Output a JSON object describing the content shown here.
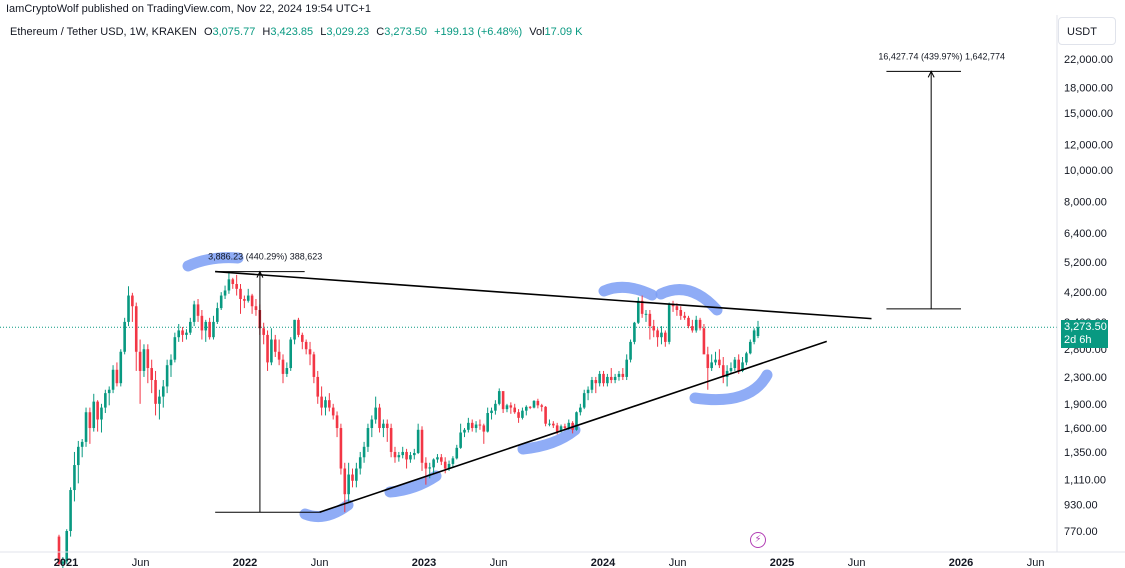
{
  "header": {
    "published": "IamCryptoWolf published on TradingView.com, Nov 22, 2024 19:54 UTC+1"
  },
  "legend": {
    "symbol": "Ethereum / Tether USD, 1W, KRAKEN",
    "o_key": "O",
    "o_val": "3,075.77",
    "h_key": "H",
    "h_val": "3,423.85",
    "l_key": "L",
    "l_val": "3,029.23",
    "c_key": "C",
    "c_val": "3,273.50",
    "change": "+199.13 (+6.48%)",
    "vol_key": "Vol",
    "vol_val": "17.09 K"
  },
  "axis": {
    "currency": "USDT",
    "y_ticks": [
      "22,000.00",
      "18,000.00",
      "15,000.00",
      "12,000.00",
      "10,000.00",
      "8,000.00",
      "6,400.00",
      "5,200.00",
      "4,200.00",
      "3,400.00",
      "2,800.00",
      "2,300.00",
      "1,900.00",
      "1,600.00",
      "1,350.00",
      "1,110.00",
      "930.00",
      "770.00"
    ],
    "x_ticks": [
      "2021",
      "Jun",
      "2022",
      "Jun",
      "2023",
      "Jun",
      "2024",
      "Jun",
      "2025",
      "Jun",
      "2026",
      "Jun"
    ]
  },
  "price_label": {
    "price": "3,273.50",
    "countdown": "2d 6h"
  },
  "annotations": {
    "measure_1": "3,886.23 (440.29%) 388,623",
    "measure_2": "16,427.74 (439.97%) 1,642,774"
  },
  "colors": {
    "up": "#089981",
    "down": "#f23645",
    "accent": "#089981",
    "highlight": "#7b9ef5",
    "logo": "#b23fb5"
  },
  "chart_data": {
    "type": "candlestick",
    "title": "Ethereum / Tether USD, 1W, KRAKEN",
    "scale": "log",
    "ylim": [
      700,
      25000
    ],
    "x_range": [
      "2020-11",
      "2026-08"
    ],
    "grid": false,
    "last_price": 3273.5,
    "trendlines": [
      {
        "name": "resistance",
        "from": [
          "2021-11",
          4860
        ],
        "to": [
          "2025-07",
          3480
        ]
      },
      {
        "name": "support",
        "from": [
          "2022-06",
          880
        ],
        "to": [
          "2025-04",
          2960
        ]
      }
    ],
    "measures": [
      {
        "from_price": 880,
        "to_price": 4860,
        "label": "3,886.23 (440.29%) 388,623"
      },
      {
        "from_price": 3730,
        "to_price": 20150,
        "label": "16,427.74 (439.97%) 1,642,774"
      }
    ],
    "series": [
      {
        "values": [
          [
            740,
            750,
            600,
            610
          ],
          [
            610,
            640,
            580,
            620
          ],
          [
            620,
            780,
            610,
            770
          ],
          [
            770,
            1050,
            740,
            1030
          ],
          [
            1030,
            1350,
            950,
            1230
          ],
          [
            1230,
            1460,
            1080,
            1400
          ],
          [
            1400,
            1480,
            1300,
            1450
          ],
          [
            1450,
            1850,
            1400,
            1790
          ],
          [
            1790,
            1850,
            1430,
            1600
          ],
          [
            1600,
            2040,
            1560,
            1930
          ],
          [
            1930,
            1950,
            1560,
            1700
          ],
          [
            1700,
            1900,
            1550,
            1850
          ],
          [
            1850,
            2100,
            1780,
            2050
          ],
          [
            2050,
            2150,
            1880,
            2100
          ],
          [
            2100,
            2500,
            2050,
            2420
          ],
          [
            2420,
            2550,
            2150,
            2200
          ],
          [
            2200,
            2800,
            2150,
            2750
          ],
          [
            2750,
            3500,
            2700,
            3400
          ],
          [
            3400,
            4380,
            3300,
            4100
          ],
          [
            4100,
            4180,
            3400,
            3800
          ],
          [
            3800,
            3900,
            2400,
            2750
          ],
          [
            2750,
            3000,
            1900,
            2400
          ],
          [
            2400,
            2900,
            2300,
            2800
          ],
          [
            2800,
            2900,
            2200,
            2450
          ],
          [
            2450,
            2600,
            2050,
            2250
          ],
          [
            2250,
            2400,
            1750,
            1900
          ],
          [
            1900,
            2100,
            1700,
            2000
          ],
          [
            2000,
            2250,
            1850,
            2150
          ],
          [
            2150,
            2600,
            2050,
            2500
          ],
          [
            2500,
            2700,
            2300,
            2600
          ],
          [
            2600,
            3150,
            2550,
            3050
          ],
          [
            3050,
            3350,
            2950,
            3200
          ],
          [
            3200,
            3280,
            2950,
            3100
          ],
          [
            3100,
            3230,
            3000,
            3150
          ],
          [
            3150,
            3500,
            3100,
            3400
          ],
          [
            3400,
            3950,
            3300,
            3850
          ],
          [
            3850,
            4000,
            3400,
            3550
          ],
          [
            3550,
            3700,
            3000,
            3200
          ],
          [
            3200,
            3450,
            2950,
            3400
          ],
          [
            3400,
            3500,
            3000,
            3050
          ],
          [
            3050,
            3550,
            3000,
            3400
          ],
          [
            3400,
            3900,
            3350,
            3750
          ],
          [
            3750,
            4200,
            3700,
            4100
          ],
          [
            4100,
            4400,
            4000,
            4250
          ],
          [
            4250,
            4850,
            4150,
            4600
          ],
          [
            4600,
            4650,
            4300,
            4450
          ],
          [
            4450,
            4750,
            4100,
            4300
          ],
          [
            4300,
            4450,
            3600,
            4000
          ],
          [
            4000,
            4100,
            3750,
            3950
          ],
          [
            3950,
            4300,
            3900,
            4100
          ],
          [
            4100,
            4150,
            3600,
            3800
          ],
          [
            3800,
            4000,
            3550,
            3700
          ],
          [
            3700,
            3850,
            3100,
            3250
          ],
          [
            3250,
            3380,
            2900,
            3100
          ],
          [
            3100,
            3200,
            2400,
            2550
          ],
          [
            2550,
            3250,
            2500,
            3000
          ],
          [
            3000,
            3100,
            2650,
            2750
          ],
          [
            2750,
            3000,
            2500,
            2600
          ],
          [
            2600,
            2700,
            2200,
            2350
          ],
          [
            2350,
            2550,
            2300,
            2450
          ],
          [
            2450,
            3050,
            2400,
            3000
          ],
          [
            3000,
            3450,
            2900,
            3450
          ],
          [
            3450,
            3500,
            3050,
            3100
          ],
          [
            3100,
            3150,
            2800,
            2950
          ],
          [
            2950,
            3000,
            2700,
            2800
          ],
          [
            2800,
            2950,
            2500,
            2700
          ],
          [
            2700,
            2750,
            2200,
            2300
          ],
          [
            2300,
            2400,
            1900,
            2000
          ],
          [
            2000,
            2150,
            1750,
            1850
          ],
          [
            1850,
            2000,
            1750,
            1950
          ],
          [
            1950,
            2050,
            1800,
            1850
          ],
          [
            1850,
            1900,
            1700,
            1750
          ],
          [
            1750,
            1800,
            1500,
            1600
          ],
          [
            1600,
            1650,
            1150,
            1200
          ],
          [
            1200,
            1250,
            880,
            1000
          ],
          [
            1000,
            1250,
            950,
            1150
          ],
          [
            1150,
            1200,
            1050,
            1100
          ],
          [
            1100,
            1250,
            1050,
            1200
          ],
          [
            1200,
            1350,
            1150,
            1300
          ],
          [
            1300,
            1450,
            1250,
            1400
          ],
          [
            1400,
            1650,
            1350,
            1600
          ],
          [
            1600,
            1750,
            1500,
            1700
          ],
          [
            1700,
            2000,
            1650,
            1850
          ],
          [
            1850,
            1900,
            1550,
            1600
          ],
          [
            1600,
            1700,
            1500,
            1650
          ],
          [
            1650,
            1700,
            1450,
            1600
          ],
          [
            1600,
            1650,
            1300,
            1350
          ],
          [
            1350,
            1400,
            1250,
            1300
          ],
          [
            1300,
            1350,
            1260,
            1320
          ],
          [
            1320,
            1400,
            1290,
            1350
          ],
          [
            1350,
            1380,
            1200,
            1280
          ],
          [
            1280,
            1350,
            1250,
            1320
          ],
          [
            1320,
            1380,
            1280,
            1340
          ],
          [
            1340,
            1650,
            1330,
            1580
          ],
          [
            1580,
            1620,
            1180,
            1250
          ],
          [
            1250,
            1300,
            1070,
            1200
          ],
          [
            1200,
            1250,
            1120,
            1210
          ],
          [
            1210,
            1290,
            1150,
            1280
          ],
          [
            1280,
            1330,
            1250,
            1300
          ],
          [
            1300,
            1330,
            1230,
            1260
          ],
          [
            1260,
            1300,
            1160,
            1200
          ],
          [
            1200,
            1270,
            1180,
            1240
          ],
          [
            1240,
            1310,
            1210,
            1290
          ],
          [
            1290,
            1420,
            1280,
            1390
          ],
          [
            1390,
            1650,
            1380,
            1550
          ],
          [
            1550,
            1600,
            1500,
            1580
          ],
          [
            1580,
            1720,
            1550,
            1660
          ],
          [
            1660,
            1700,
            1560,
            1600
          ],
          [
            1600,
            1680,
            1550,
            1640
          ],
          [
            1640,
            1700,
            1580,
            1630
          ],
          [
            1630,
            1650,
            1430,
            1560
          ],
          [
            1560,
            1850,
            1550,
            1780
          ],
          [
            1780,
            1850,
            1700,
            1810
          ],
          [
            1810,
            1950,
            1760,
            1900
          ],
          [
            1900,
            2120,
            1880,
            2080
          ],
          [
            2080,
            2000,
            1780,
            1830
          ],
          [
            1830,
            1900,
            1790,
            1880
          ],
          [
            1880,
            1920,
            1770,
            1850
          ],
          [
            1850,
            1900,
            1770,
            1790
          ],
          [
            1790,
            1830,
            1660,
            1720
          ],
          [
            1720,
            1850,
            1700,
            1810
          ],
          [
            1810,
            1880,
            1750,
            1860
          ],
          [
            1860,
            1870,
            1830,
            1850
          ],
          [
            1850,
            1950,
            1840,
            1940
          ],
          [
            1940,
            1970,
            1840,
            1880
          ],
          [
            1880,
            1900,
            1800,
            1860
          ],
          [
            1860,
            1870,
            1620,
            1650
          ],
          [
            1650,
            1700,
            1620,
            1650
          ],
          [
            1650,
            1680,
            1600,
            1630
          ],
          [
            1630,
            1660,
            1530,
            1560
          ],
          [
            1560,
            1640,
            1550,
            1620
          ],
          [
            1620,
            1650,
            1580,
            1600
          ],
          [
            1600,
            1700,
            1580,
            1660
          ],
          [
            1660,
            1680,
            1540,
            1580
          ],
          [
            1580,
            1800,
            1570,
            1790
          ],
          [
            1790,
            1900,
            1750,
            1850
          ],
          [
            1850,
            2100,
            1830,
            2050
          ],
          [
            2050,
            2150,
            1950,
            2100
          ],
          [
            2100,
            2300,
            2050,
            2250
          ],
          [
            2250,
            2300,
            2050,
            2200
          ],
          [
            2200,
            2400,
            2150,
            2350
          ],
          [
            2350,
            2400,
            2150,
            2200
          ],
          [
            2200,
            2350,
            2150,
            2300
          ],
          [
            2300,
            2450,
            2200,
            2250
          ],
          [
            2250,
            2350,
            2200,
            2300
          ],
          [
            2300,
            2400,
            2240,
            2350
          ],
          [
            2350,
            2450,
            2250,
            2300
          ],
          [
            2300,
            2700,
            2250,
            2600
          ],
          [
            2600,
            3000,
            2550,
            2950
          ],
          [
            2950,
            3400,
            2900,
            3380
          ],
          [
            3380,
            4050,
            3350,
            3950
          ],
          [
            3950,
            4100,
            3500,
            3600
          ],
          [
            3600,
            3700,
            3400,
            3600
          ],
          [
            3600,
            3700,
            3000,
            3300
          ],
          [
            3300,
            3450,
            3050,
            3200
          ],
          [
            3200,
            3250,
            2850,
            3050
          ],
          [
            3050,
            3300,
            2900,
            3150
          ],
          [
            3150,
            3200,
            2850,
            2950
          ],
          [
            2950,
            3900,
            2900,
            3850
          ],
          [
            3850,
            3950,
            3650,
            3800
          ],
          [
            3800,
            3880,
            3550,
            3700
          ],
          [
            3700,
            3800,
            3450,
            3550
          ],
          [
            3550,
            3650,
            3450,
            3500
          ],
          [
            3500,
            3550,
            3250,
            3300
          ],
          [
            3300,
            3450,
            3150,
            3200
          ],
          [
            3200,
            3550,
            3150,
            3450
          ],
          [
            3450,
            3500,
            3200,
            3250
          ],
          [
            3250,
            3350,
            2900,
            2700
          ],
          [
            2700,
            2850,
            2100,
            2450
          ],
          [
            2450,
            2700,
            2400,
            2550
          ],
          [
            2550,
            2750,
            2500,
            2600
          ],
          [
            2600,
            2800,
            2450,
            2500
          ],
          [
            2500,
            2650,
            2200,
            2300
          ],
          [
            2300,
            2500,
            2150,
            2400
          ],
          [
            2400,
            2550,
            2350,
            2450
          ],
          [
            2450,
            2650,
            2400,
            2600
          ],
          [
            2600,
            2700,
            2350,
            2400
          ],
          [
            2400,
            2650,
            2380,
            2550
          ],
          [
            2550,
            2750,
            2500,
            2720
          ],
          [
            2720,
            3000,
            2700,
            2950
          ],
          [
            2950,
            3250,
            2900,
            3200
          ],
          [
            3075.77,
            3423.85,
            3029.23,
            3273.5
          ]
        ]
      }
    ]
  }
}
